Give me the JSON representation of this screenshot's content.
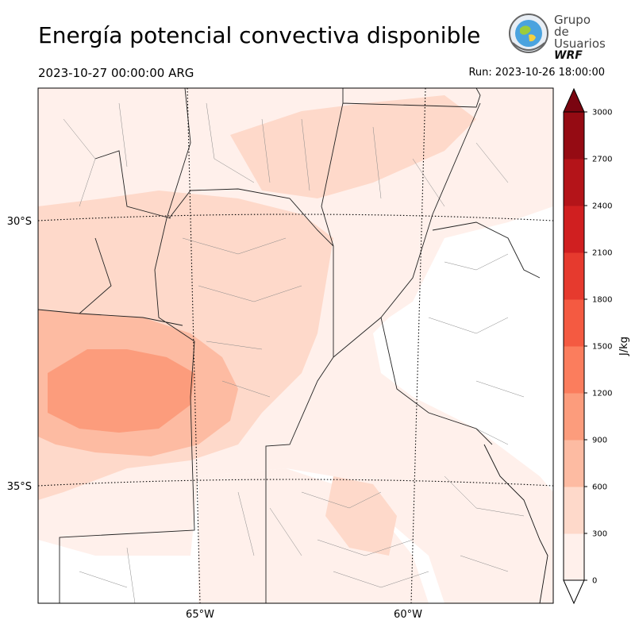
{
  "header": {
    "title": "Energía potencial convectiva disponible",
    "valid_time": "2023-10-27 00:00:00 ARG",
    "run_time": "Run: 2023-10-26 18:00:00"
  },
  "logo": {
    "line1": "Grupo de",
    "line2": "Usuarios",
    "brand": "WRF"
  },
  "map": {
    "lat_labels": [
      "30°S",
      "35°S"
    ],
    "lon_labels": [
      "65°W",
      "60°W"
    ]
  },
  "colorbar": {
    "unit": "J/kg",
    "tick_labels": [
      "0",
      "300",
      "600",
      "900",
      "1200",
      "1500",
      "1800",
      "2100",
      "2400",
      "2700",
      "3000"
    ],
    "colors": [
      "#fff0eb",
      "#fed9ca",
      "#fdbba2",
      "#fc9c7c",
      "#fb7d5d",
      "#f45a41",
      "#e63a2e",
      "#d01f20",
      "#b41419",
      "#950b13",
      "#7a0510"
    ]
  }
}
